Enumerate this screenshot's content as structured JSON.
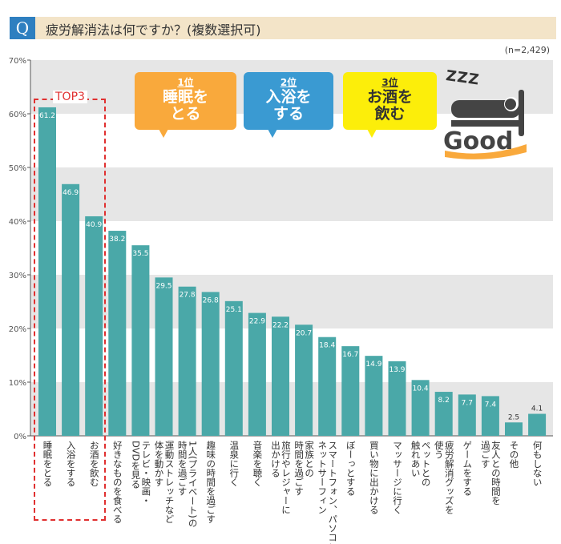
{
  "header": {
    "icon": "Q",
    "question": "疲労解消法は何ですか？(複数選択可)",
    "n": "(n=2,429)"
  },
  "callouts": [
    {
      "rank": "1位",
      "text": "睡眠を\nとる",
      "color": "#f9a93c",
      "textColor": "#ffffff"
    },
    {
      "rank": "2位",
      "text": "入浴を\nする",
      "color": "#3a9ad2",
      "textColor": "#ffffff"
    },
    {
      "rank": "3位",
      "text": "お酒を\n飲む",
      "color": "#fcee0a",
      "textColor": "#333333"
    }
  ],
  "top3_label": "TOP3",
  "good_label": "Good",
  "zzz": "ZZZ",
  "chart_data": {
    "type": "bar",
    "ylim": [
      0,
      70
    ],
    "yticks": [
      "0%",
      "10%",
      "20%",
      "30%",
      "40%",
      "50%",
      "60%",
      "70%"
    ],
    "bar_color": "#4aa8a8",
    "categories": [
      "睡眠をとる",
      "入浴をする",
      "お酒を飲む",
      "好きなものを食べる",
      "テレビ・映画・\nDVDを見る",
      "運動ストレッチなど\n体を動かす",
      "1人(プライベート)の\n時間を過ごす",
      "趣味の時間を過ごす",
      "温泉に行く",
      "音楽を聴く",
      "旅行やレジャーに\n出かける",
      "家族との\n時間を過ごす",
      "スマートフォン、パソコンで\nネットサーフィン",
      "ぼーっとする",
      "買い物に出かける",
      "マッサージに行く",
      "ペットとの\n触れあい",
      "疲労解消グッズを\n使う",
      "ゲームをする",
      "友人との時間を\n過ごす",
      "その他",
      "何もしない"
    ],
    "values": [
      61.2,
      46.9,
      40.9,
      38.2,
      35.5,
      29.5,
      27.8,
      26.8,
      25.1,
      22.9,
      22.2,
      20.7,
      18.4,
      16.7,
      14.9,
      13.9,
      10.4,
      8.2,
      7.7,
      7.4,
      2.5,
      4.1
    ]
  }
}
